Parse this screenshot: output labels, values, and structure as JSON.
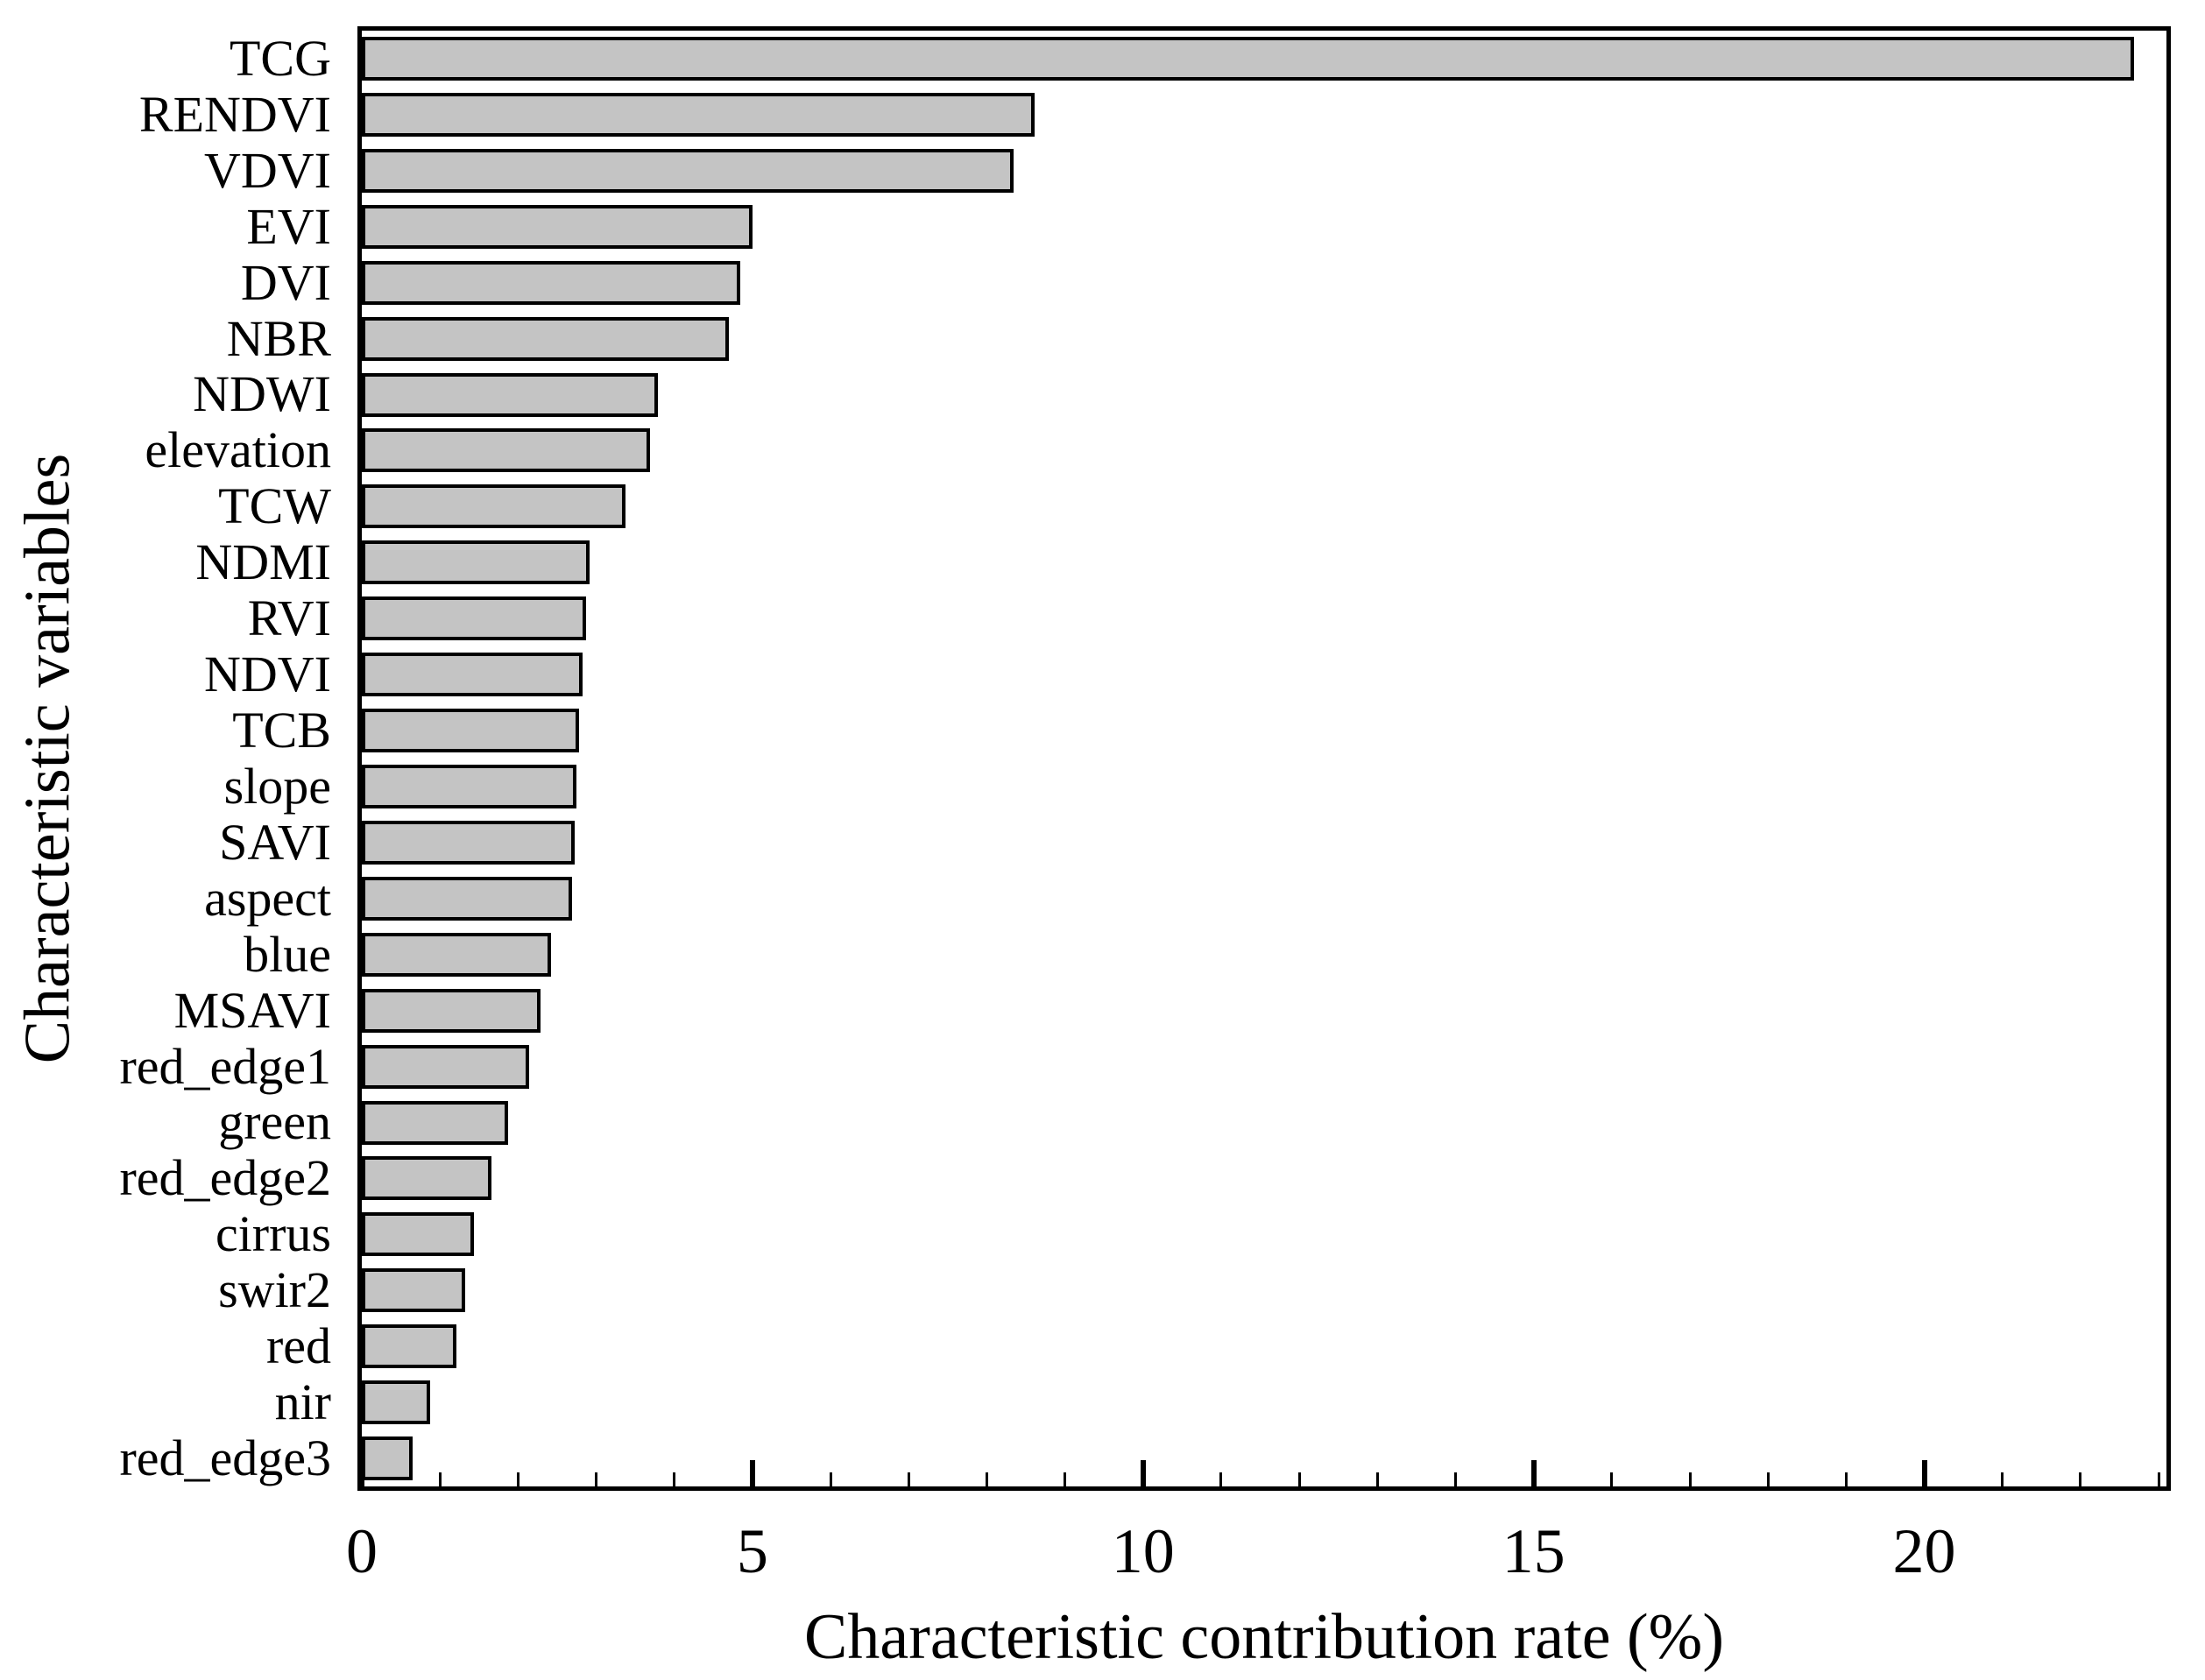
{
  "figure": {
    "background": "#ffffff"
  },
  "chart_data": {
    "type": "bar",
    "orientation": "horizontal",
    "title": "",
    "xlabel": "Characteristic contribution rate (%)",
    "ylabel": "Characteristic variables",
    "categories": [
      "TCG",
      "RENDVI",
      "VDVI",
      "EVI",
      "DVI",
      "NBR",
      "NDWI",
      "elevation",
      "TCW",
      "NDMI",
      "RVI",
      "NDVI",
      "TCB",
      "slope",
      "SAVI",
      "aspect",
      "blue",
      "MSAVI",
      "red_edge1",
      "green",
      "red_edge2",
      "cirrus",
      "swir2",
      "red",
      "nir",
      "red_edge3"
    ],
    "values": [
      22.68,
      8.61,
      8.34,
      5.0,
      4.84,
      4.7,
      3.79,
      3.69,
      3.38,
      2.92,
      2.87,
      2.83,
      2.78,
      2.75,
      2.72,
      2.69,
      2.42,
      2.29,
      2.14,
      1.87,
      1.66,
      1.43,
      1.32,
      1.21,
      0.87,
      0.65
    ],
    "xlim": [
      0,
      23.1
    ],
    "xticks_major": [
      0,
      5,
      10,
      15,
      20
    ],
    "xtick_minor_step": 1,
    "grid": false,
    "legend": null,
    "bar_fill": "#c4c4c4",
    "bar_edge": "#000000",
    "axis_color": "#000000"
  }
}
